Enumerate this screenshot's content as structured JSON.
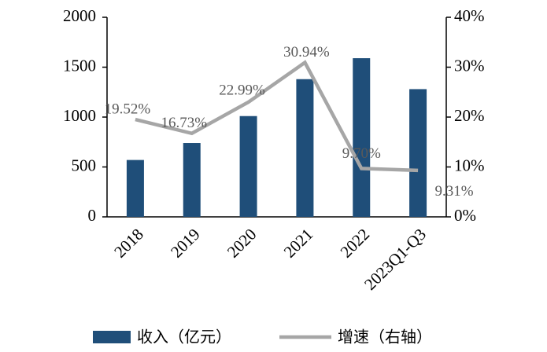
{
  "chart_data": {
    "type": "bar",
    "categories": [
      "2018",
      "2019",
      "2020",
      "2021",
      "2022",
      "2023Q1-Q3"
    ],
    "series": [
      {
        "name": "收入（亿元）",
        "type": "bar",
        "color": "#1f4e79",
        "values": [
          570,
          740,
          1010,
          1380,
          1590,
          1280
        ]
      },
      {
        "name": "增速（右轴）",
        "type": "line",
        "color": "#a6a6a6",
        "axis": "y2",
        "values": [
          19.52,
          16.73,
          22.99,
          30.94,
          9.7,
          9.31
        ],
        "value_labels": [
          "19.52%",
          "16.73%",
          "22.99%",
          "30.94%",
          "9.70%",
          "9.31%"
        ]
      }
    ],
    "ylim": [
      0,
      2000
    ],
    "yticks": [
      0,
      500,
      1000,
      1500,
      2000
    ],
    "y2lim": [
      0,
      40
    ],
    "y2ticks": [
      {
        "value": 0,
        "label": "0%"
      },
      {
        "value": 10,
        "label": "10%"
      },
      {
        "value": 20,
        "label": "20%"
      },
      {
        "value": 30,
        "label": "30%"
      },
      {
        "value": 40,
        "label": "40%"
      }
    ]
  }
}
